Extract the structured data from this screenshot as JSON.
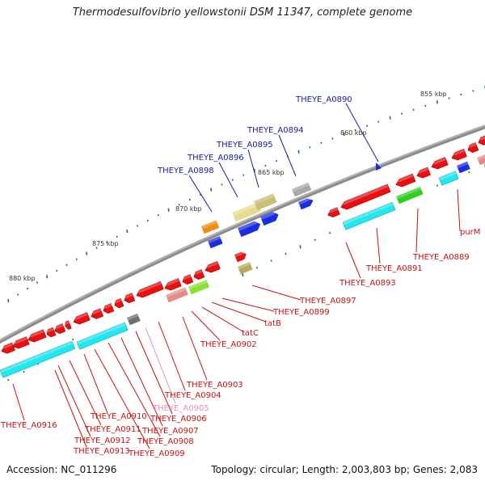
{
  "title": "Thermodesulfovibrio yellowstonii DSM 11347, complete genome",
  "footer": {
    "accession": "Accession: NC_011296",
    "summary": "Topology: circular; Length: 2,003,803 bp; Genes: 2,083"
  },
  "scale_ticks": [
    "855 kbp",
    "860 kbp",
    "865 kbp",
    "870 kbp",
    "875 kbp",
    "880 kbp"
  ],
  "labels_forward": [
    "THEYE_A0890",
    "THEYE_A0894",
    "THEYE_A0895",
    "THEYE_A0896",
    "THEYE_A0898"
  ],
  "labels_reverse": [
    "purM",
    "THEYE_A0889",
    "THEYE_A0891",
    "THEYE_A0893",
    "THEYE_A0897",
    "THEYE_A0899",
    "tatB",
    "tatC",
    "THEYE_A0902",
    "THEYE_A0903",
    "THEYE_A0904",
    "THEYE_A0905",
    "THEYE_A0906",
    "THEYE_A0907",
    "THEYE_A0908",
    "THEYE_A0909",
    "THEYE_A0910",
    "THEYE_A0911",
    "THEYE_A0912",
    "THEYE_A0913",
    "THEYE_A0916"
  ],
  "colors": {
    "forward_label": "#1a1aa6",
    "reverse_label": "#cc1111",
    "pseudo_label": "#e58fc0",
    "backbone": "#8c8c8c",
    "tick_green": "#1e7a1e",
    "gene_red": "#e81010",
    "gene_cyan": "#22e6f0",
    "gene_blue": "#1a2ee0"
  }
}
